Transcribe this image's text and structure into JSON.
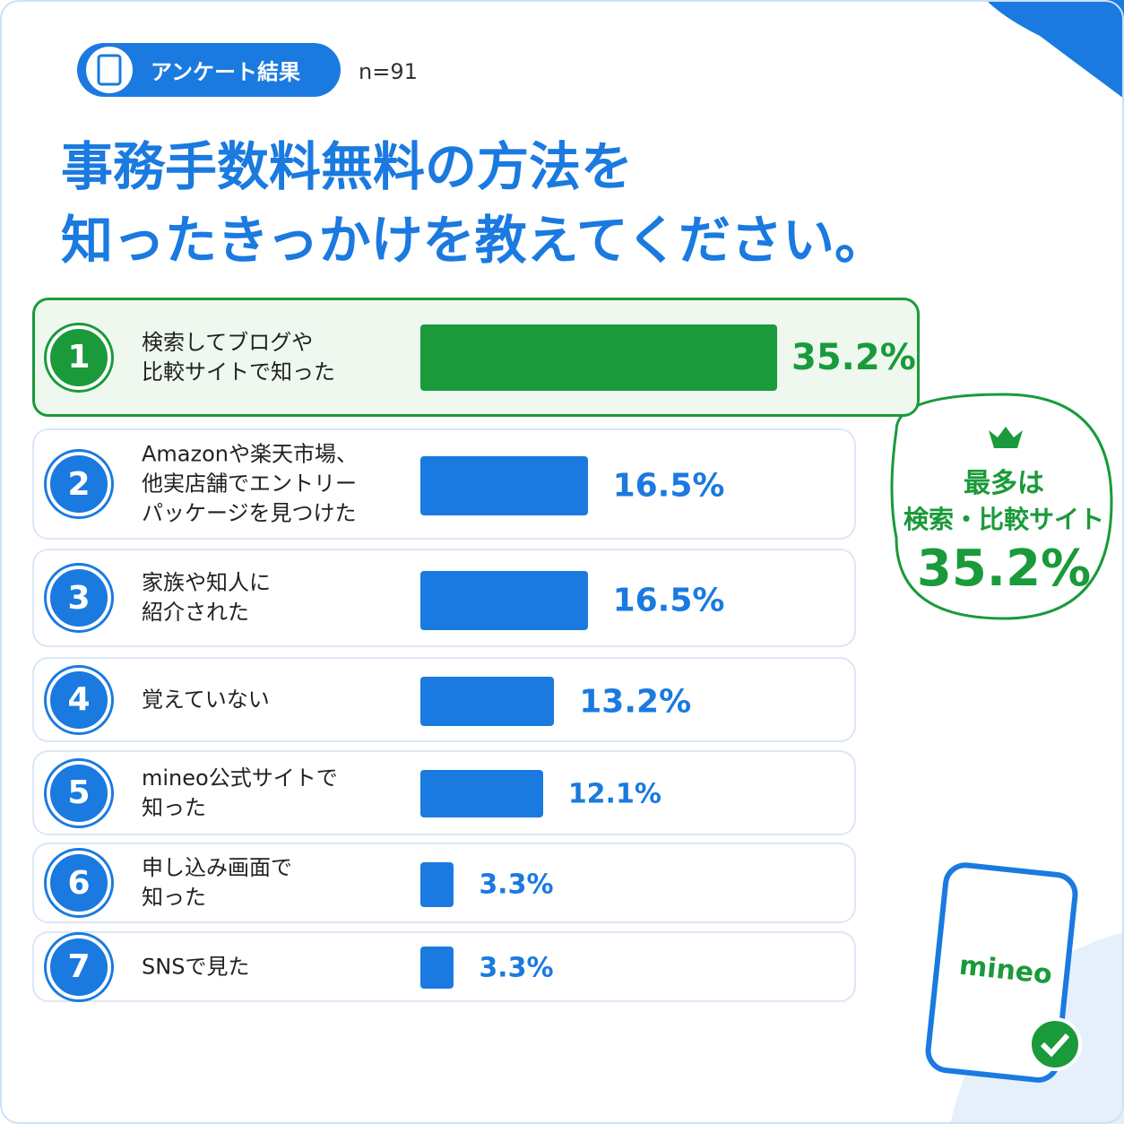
{
  "chart_data": {
    "type": "bar",
    "badge": "アンケート結果",
    "sample_size": "n=91",
    "title": [
      "事務手数料無料の方法を",
      "知ったきっかけを教えてください。"
    ],
    "ranks": [
      1,
      2,
      3,
      4,
      5,
      6,
      7
    ],
    "categories": [
      "検索してブログや\n比較サイトで知った",
      "Amazonや楽天市場、\n他実店舗でエントリー\nパッケージを見つけた",
      "家族や知人に\n紹介された",
      "覚えていない",
      "mineo公式サイトで\n知った",
      "申し込み画面で\n知った",
      "SNSで見た"
    ],
    "values": [
      35.2,
      16.5,
      16.5,
      13.2,
      12.1,
      3.3,
      3.3
    ],
    "value_labels": [
      "35.2%",
      "16.5%",
      "16.5%",
      "13.2%",
      "12.1%",
      "3.3%",
      "3.3%"
    ],
    "color": "#1a7ae0",
    "highlight_color": "#1a9a3a",
    "callout": {
      "lines": [
        "最多は",
        "検索・比較サイト"
      ],
      "value_label": "35.2%"
    },
    "logo": "mineo"
  }
}
